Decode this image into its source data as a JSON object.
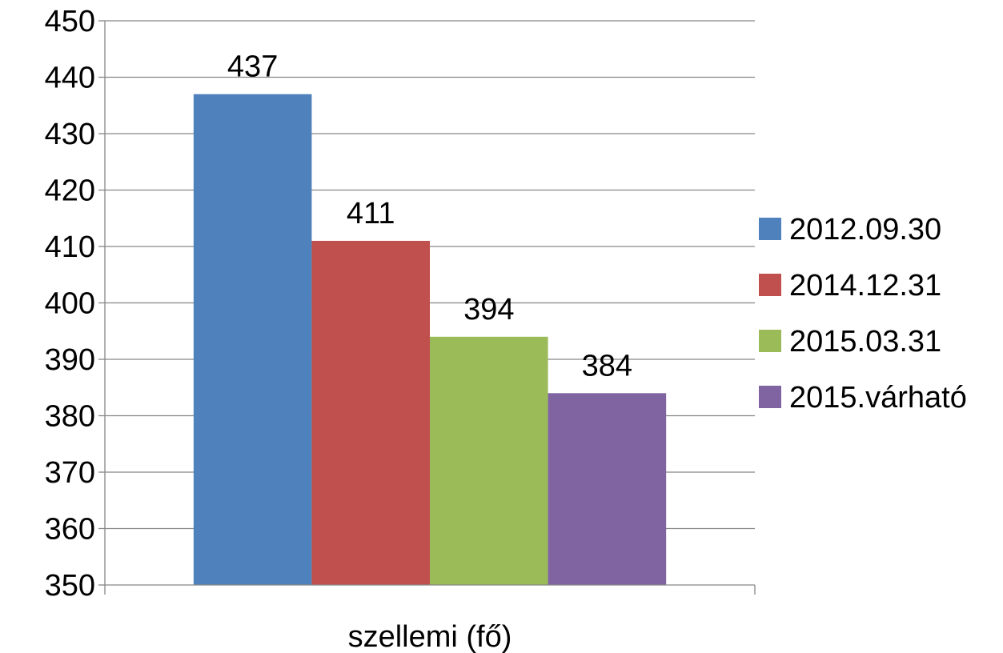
{
  "chart_data": {
    "type": "bar",
    "title": "",
    "xlabel": "",
    "ylabel": "",
    "categories": [
      "szellemi (fő)"
    ],
    "series": [
      {
        "name": "2012.09.30",
        "values": [
          437
        ],
        "color": "#4F81BD"
      },
      {
        "name": "2014.12.31",
        "values": [
          411
        ],
        "color": "#C0504D"
      },
      {
        "name": "2015.03.31",
        "values": [
          394
        ],
        "color": "#9BBB59"
      },
      {
        "name": "2015.várható",
        "values": [
          384
        ],
        "color": "#8064A2"
      }
    ],
    "ylim": [
      350,
      450
    ],
    "yticks": [
      "350",
      "360",
      "370",
      "380",
      "390",
      "400",
      "410",
      "420",
      "430",
      "440",
      "450"
    ],
    "grid": true,
    "data_labels": true,
    "legend_position": "right"
  }
}
